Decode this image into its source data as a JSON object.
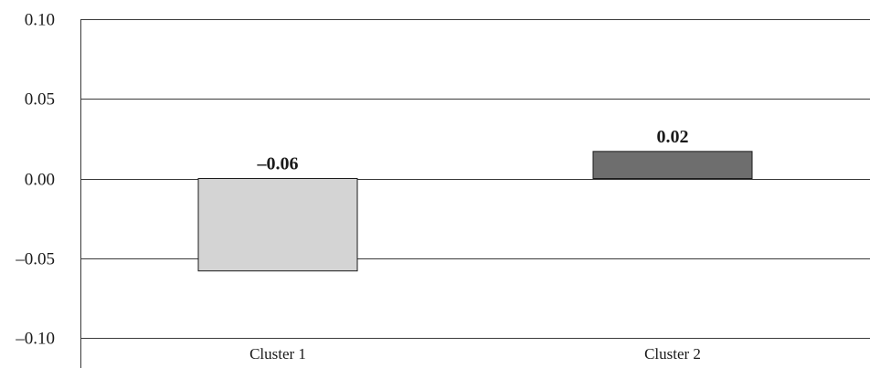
{
  "chart_data": {
    "type": "bar",
    "title": "",
    "xlabel": "",
    "ylabel": "",
    "categories": [
      "Cluster 1",
      "Cluster 2"
    ],
    "values": [
      -0.058,
      0.017
    ],
    "value_labels": [
      "–0.06",
      "0.02"
    ],
    "bar_colors": [
      "#d4d4d4",
      "#6e6e6e"
    ],
    "ylim": [
      -0.1,
      0.1
    ],
    "yticks": [
      0.1,
      0.05,
      0.0,
      -0.05,
      -0.1
    ],
    "ytick_labels": [
      "0.10",
      "0.05",
      "0.00",
      "–0.05",
      "–0.10"
    ],
    "grid": true,
    "legend": false
  }
}
